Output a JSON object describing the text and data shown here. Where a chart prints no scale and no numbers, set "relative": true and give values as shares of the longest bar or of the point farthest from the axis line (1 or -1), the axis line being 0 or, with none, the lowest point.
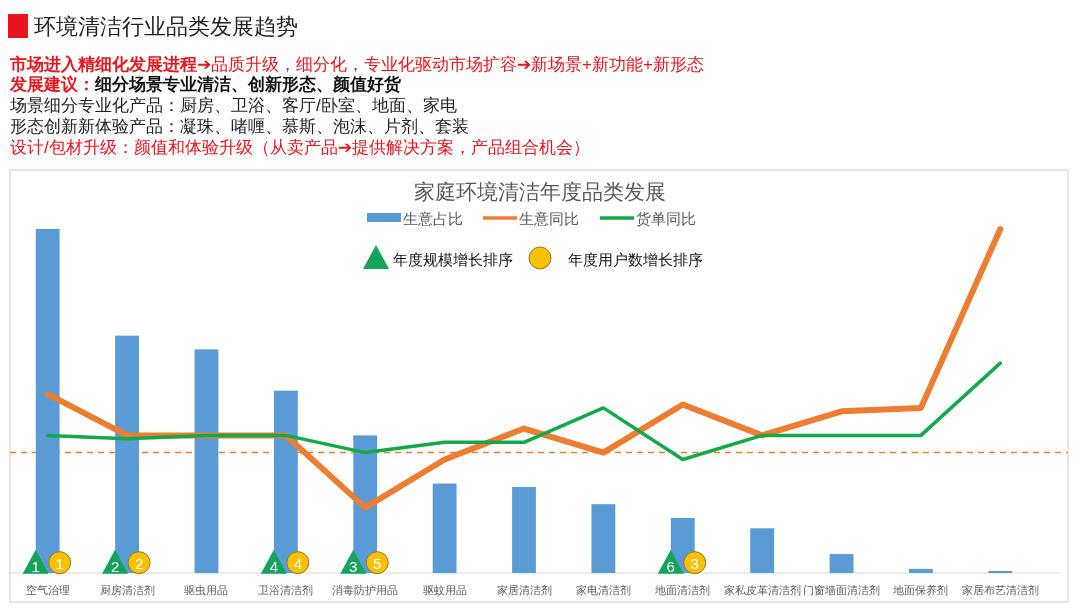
{
  "chart_data": {
    "type": "bar",
    "title": "家庭环境清洁年度品类发展",
    "relative": true,
    "legend": "top",
    "categories": [
      "空气治理",
      "厨房清洁剂",
      "驱虫用品",
      "卫浴清洁剂",
      "消毒防护用品",
      "驱蚊用品",
      "家居清洁剂",
      "家电清洁剂",
      "地面清洁剂",
      "家私皮革清洁剂",
      "门窗墙面清洁剂",
      "地面保养剂",
      "家居布艺清洁剂"
    ],
    "series": [
      {
        "name": "生意占比",
        "color": "#5b9bd5",
        "values": [
          1.0,
          0.69,
          0.65,
          0.53,
          0.4,
          0.26,
          0.25,
          0.2,
          0.16,
          0.13,
          0.055,
          0.012,
          0.006
        ]
      },
      {
        "name": "生意同比",
        "type": "line",
        "color": "#ed7d31",
        "values": [
          0.52,
          0.4,
          0.4,
          0.4,
          0.19,
          0.33,
          0.42,
          0.35,
          0.49,
          0.4,
          0.47,
          0.48,
          1.0
        ]
      },
      {
        "name": "货单同比",
        "type": "line",
        "color": "#14a84a",
        "values": [
          0.4,
          0.39,
          0.4,
          0.4,
          0.35,
          0.38,
          0.38,
          0.48,
          0.33,
          0.4,
          0.4,
          0.4,
          0.61
        ]
      },
      {
        "name": "年度规模增长排序",
        "type": "scatter",
        "marker": "triangle",
        "color": "#13a35a",
        "x": [
          "空气治理",
          "厨房清洁剂",
          "卫浴清洁剂",
          "消毒防护用品",
          "地面清洁剂"
        ],
        "values": [
          0.03,
          0.03,
          0.03,
          0.03,
          0.03
        ]
      },
      {
        "name": "年度用户数增长排序",
        "type": "scatter",
        "marker": "circle",
        "color": "#fbc000",
        "x": [
          "空气治理",
          "厨房清洁剂",
          "卫浴清洁剂",
          "消毒防护用品",
          "地面清洁剂"
        ],
        "values": [
          0.03,
          0.03,
          0.03,
          0.03,
          0.03
        ]
      }
    ],
    "ref_lines": [
      {
        "axis": "y",
        "value": 0.35,
        "color": "#ed7d31",
        "line_style": "dashed"
      }
    ],
    "annotations": [
      "环境清洁行业品类发展趋势",
      "市场进入精细化发展进程➔品质升级，细分化，专业化驱动市场扩容➔新场景+新功能+新形态",
      "发展建议：细分场景专业清洁、创新形态、颜值好货",
      "场景细分专业化产品：厨房、卫浴、客厅/卧室、地面、家电",
      "形态创新新体验产品：凝珠、啫喱、慕斯、泡沫、片剂、套装",
      "设计/包材升级：颜值和体验升级（从卖产品➔提供解决方案，产品组合机会）",
      {
        "text": "1",
        "x": "空气治理",
        "y": 0.03
      },
      {
        "text": "2",
        "x": "厨房清洁剂",
        "y": 0.03
      },
      {
        "text": "4",
        "x": "卫浴清洁剂",
        "y": 0.03
      },
      {
        "text": "3",
        "x": "消毒防护用品",
        "y": 0.03
      },
      {
        "text": "6",
        "x": "地面清洁剂",
        "y": 0.03
      },
      {
        "text": "1",
        "x": "空气治理",
        "y": 0.03
      },
      {
        "text": "2",
        "x": "厨房清洁剂",
        "y": 0.03
      },
      {
        "text": "4",
        "x": "卫浴清洁剂",
        "y": 0.03
      },
      {
        "text": "5",
        "x": "消毒防护用品",
        "y": 0.03
      },
      {
        "text": "3",
        "x": "地面清洁剂",
        "y": 0.03
      }
    ]
  }
}
